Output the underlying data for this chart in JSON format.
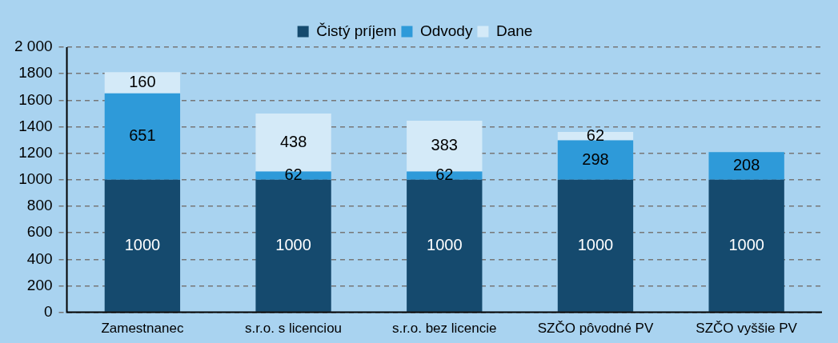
{
  "chart_data": {
    "type": "bar",
    "stacked": true,
    "categories": [
      "Zamestnanec",
      "s.r.o. s licenciou",
      "s.r.o. bez licencie",
      "SZČO pôvodné PV",
      "SZČO vyššie PV"
    ],
    "series": [
      {
        "name": "Čistý príjem",
        "color": "#154a6e",
        "values": [
          1000,
          1000,
          1000,
          1000,
          1000
        ]
      },
      {
        "name": "Odvody",
        "color": "#2e9ad9",
        "values": [
          651,
          62,
          62,
          298,
          208
        ]
      },
      {
        "name": "Dane",
        "color": "#d4eaf8",
        "values": [
          160,
          438,
          383,
          62,
          null
        ]
      }
    ],
    "ylim": [
      0,
      2000
    ],
    "yticks": [
      0,
      200,
      400,
      600,
      800,
      1000,
      1200,
      1400,
      1600,
      1800,
      {
        "value": 2000,
        "label": "2 000"
      }
    ],
    "grid": "y",
    "legend": "top",
    "data_labels": true
  }
}
